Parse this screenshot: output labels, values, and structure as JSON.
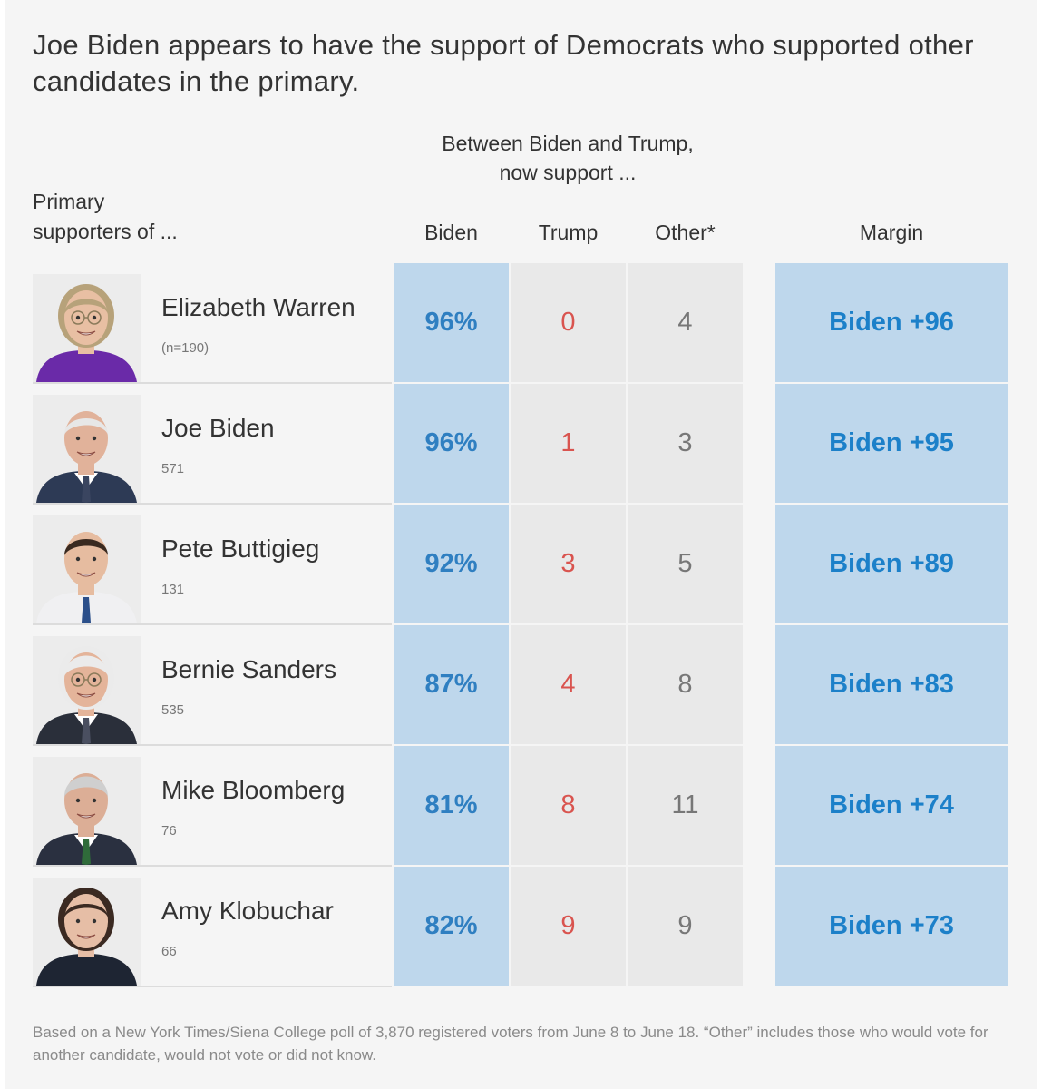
{
  "title": "Joe Biden appears to have the support of Democrats who supported other candidates in the primary.",
  "super_header": [
    "Between Biden and Trump,",
    "now support ..."
  ],
  "row_header": [
    "Primary",
    "supporters of ..."
  ],
  "colors": {
    "biden_blue": "#2f7fc1",
    "biden_cell": "#bed7ec",
    "trump_red": "#d9544f",
    "neutral_cell": "#e9e9e9"
  },
  "chart_data": {
    "type": "table",
    "columns": [
      "Biden",
      "Trump",
      "Other*",
      "Margin"
    ],
    "rows": [
      {
        "name": "Elizabeth Warren",
        "n": "(n=190)",
        "biden": "96%",
        "trump": "0",
        "other": "4",
        "margin": "Biden +96",
        "photo": "portrait-warren"
      },
      {
        "name": "Joe Biden",
        "n": "571",
        "biden": "96%",
        "trump": "1",
        "other": "3",
        "margin": "Biden +95",
        "photo": "portrait-biden"
      },
      {
        "name": "Pete Buttigieg",
        "n": "131",
        "biden": "92%",
        "trump": "3",
        "other": "5",
        "margin": "Biden +89",
        "photo": "portrait-buttigieg"
      },
      {
        "name": "Bernie Sanders",
        "n": "535",
        "biden": "87%",
        "trump": "4",
        "other": "8",
        "margin": "Biden +83",
        "photo": "portrait-sanders"
      },
      {
        "name": "Mike Bloomberg",
        "n": "76",
        "biden": "81%",
        "trump": "8",
        "other": "11",
        "margin": "Biden +74",
        "photo": "portrait-bloomberg"
      },
      {
        "name": "Amy Klobuchar",
        "n": "66",
        "biden": "82%",
        "trump": "9",
        "other": "9",
        "margin": "Biden +73",
        "photo": "portrait-klobuchar"
      }
    ]
  },
  "footnote": "Based on a New York Times/Siena College poll of 3,870 registered voters from June 8 to June 18. “Other” includes those who would vote for another candidate, would not vote or did not know."
}
